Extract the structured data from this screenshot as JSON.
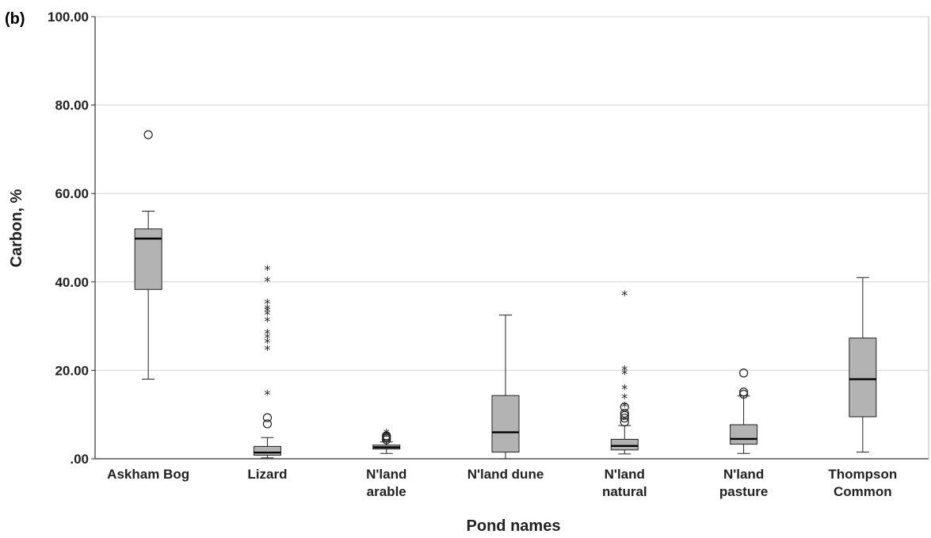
{
  "panel_label": "(b)",
  "chart_data": {
    "type": "boxplot",
    "xlabel": "Pond names",
    "ylabel": "Carbon, %",
    "ylim": [
      0,
      100
    ],
    "yticks": [
      ".00",
      "20.00",
      "40.00",
      "60.00",
      "80.00",
      "100.00"
    ],
    "ytick_values": [
      0,
      20,
      40,
      60,
      80,
      100
    ],
    "grid": "horizontal",
    "box_color": "#b3b3b3",
    "categories": [
      [
        "Askham Bog"
      ],
      [
        "Lizard"
      ],
      [
        "N'land",
        "arable"
      ],
      [
        "N'land dune"
      ],
      [
        "N'land",
        "natural"
      ],
      [
        "N'land",
        "pasture"
      ],
      [
        "Thompson",
        "Common"
      ]
    ],
    "boxes": [
      {
        "whisker_low": 18.0,
        "q1": 38.3,
        "median": 49.8,
        "q3": 52.0,
        "whisker_high": 56.0,
        "outliers": [
          73.3
        ],
        "extremes": []
      },
      {
        "whisker_low": 0.2,
        "q1": 0.8,
        "median": 1.4,
        "q3": 2.8,
        "whisker_high": 4.8,
        "outliers": [
          7.9,
          9.3
        ],
        "extremes": [
          14.8,
          24.9,
          26.5,
          27.6,
          28.6,
          31.4,
          32.9,
          33.6,
          34.1,
          35.4,
          40.4,
          43.0
        ]
      },
      {
        "whisker_low": 1.2,
        "q1": 2.2,
        "median": 2.6,
        "q3": 3.1,
        "whisker_high": 3.8,
        "outliers": [
          4.3,
          4.7,
          5.0,
          5.2
        ],
        "extremes": [
          5.5,
          6.0
        ]
      },
      {
        "whisker_low": 0.0,
        "q1": 1.5,
        "median": 6.0,
        "q3": 14.3,
        "whisker_high": 32.5,
        "outliers": [],
        "extremes": []
      },
      {
        "whisker_low": 1.1,
        "q1": 2.0,
        "median": 2.9,
        "q3": 4.4,
        "whisker_high": 7.5,
        "outliers": [
          8.3,
          9.2,
          9.8,
          10.3,
          11.7
        ],
        "extremes": [
          12.1,
          14.0,
          16.0,
          19.4,
          20.3,
          37.3
        ]
      },
      {
        "whisker_low": 1.2,
        "q1": 3.3,
        "median": 4.5,
        "q3": 7.7,
        "whisker_high": 14.2,
        "outliers": [
          14.6,
          15.1,
          19.4
        ],
        "extremes": []
      },
      {
        "whisker_low": 1.5,
        "q1": 9.5,
        "median": 18.0,
        "q3": 27.3,
        "whisker_high": 41.0,
        "outliers": [],
        "extremes": []
      }
    ]
  }
}
